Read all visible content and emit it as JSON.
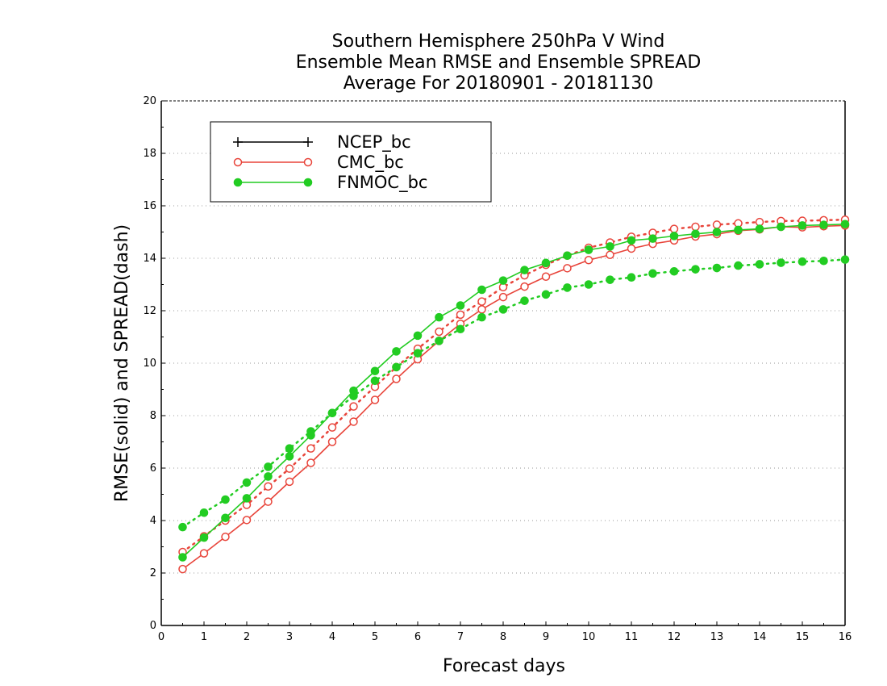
{
  "chart_data": {
    "type": "line",
    "title": [
      "Southern Hemisphere 250hPa V Wind",
      "Ensemble Mean RMSE and Ensemble SPREAD",
      "Average For 20180901 - 20181130"
    ],
    "xlabel": "Forecast days",
    "ylabel": "RMSE(solid) and SPREAD(dash)",
    "xlim": [
      0,
      16
    ],
    "ylim": [
      0,
      20
    ],
    "xticks": [
      0,
      1,
      2,
      3,
      4,
      5,
      6,
      7,
      8,
      9,
      10,
      11,
      12,
      13,
      14,
      15,
      16
    ],
    "yticks": [
      0,
      2,
      4,
      6,
      8,
      10,
      12,
      14,
      16,
      18,
      20
    ],
    "grid": "horizontal dotted",
    "legend_position": "top-left",
    "x": [
      0.5,
      1,
      1.5,
      2,
      2.5,
      3,
      3.5,
      4,
      4.5,
      5,
      5.5,
      6,
      6.5,
      7,
      7.5,
      8,
      8.5,
      9,
      9.5,
      10,
      10.5,
      11,
      11.5,
      12,
      12.5,
      13,
      13.5,
      14,
      14.5,
      15,
      15.5,
      16
    ],
    "series": [
      {
        "name": "NCEP_bc",
        "color": "#000000",
        "marker": "plus",
        "rmse": [],
        "spread": []
      },
      {
        "name": "CMC_bc",
        "color": "#e8443a",
        "marker": "open-circle",
        "rmse": [
          2.15,
          2.75,
          3.38,
          4.02,
          4.72,
          5.48,
          6.2,
          7.0,
          7.77,
          8.6,
          9.4,
          10.15,
          10.85,
          11.5,
          12.05,
          12.52,
          12.92,
          13.3,
          13.62,
          13.93,
          14.13,
          14.37,
          14.55,
          14.68,
          14.83,
          14.92,
          15.05,
          15.1,
          15.2,
          15.18,
          15.22,
          15.25
        ],
        "spread": [
          2.8,
          3.4,
          4.0,
          4.6,
          5.3,
          5.98,
          6.75,
          7.55,
          8.35,
          9.1,
          9.85,
          10.55,
          11.2,
          11.85,
          12.35,
          12.9,
          13.35,
          13.75,
          14.1,
          14.4,
          14.6,
          14.82,
          14.97,
          15.12,
          15.2,
          15.28,
          15.33,
          15.38,
          15.42,
          15.43,
          15.45,
          15.47
        ]
      },
      {
        "name": "FNMOC_bc",
        "color": "#22cc22",
        "marker": "filled-circle",
        "rmse": [
          2.6,
          3.35,
          4.1,
          4.85,
          5.68,
          6.45,
          7.25,
          8.1,
          8.95,
          9.7,
          10.45,
          11.05,
          11.75,
          12.2,
          12.8,
          13.15,
          13.55,
          13.82,
          14.1,
          14.32,
          14.45,
          14.68,
          14.75,
          14.85,
          14.93,
          15.0,
          15.08,
          15.12,
          15.2,
          15.25,
          15.27,
          15.3
        ],
        "spread": [
          3.75,
          4.3,
          4.8,
          5.45,
          6.05,
          6.75,
          7.4,
          8.1,
          8.75,
          9.33,
          9.85,
          10.38,
          10.85,
          11.3,
          11.75,
          12.05,
          12.38,
          12.62,
          12.88,
          13.0,
          13.18,
          13.27,
          13.42,
          13.5,
          13.58,
          13.63,
          13.72,
          13.77,
          13.83,
          13.87,
          13.9,
          13.95
        ]
      }
    ]
  }
}
